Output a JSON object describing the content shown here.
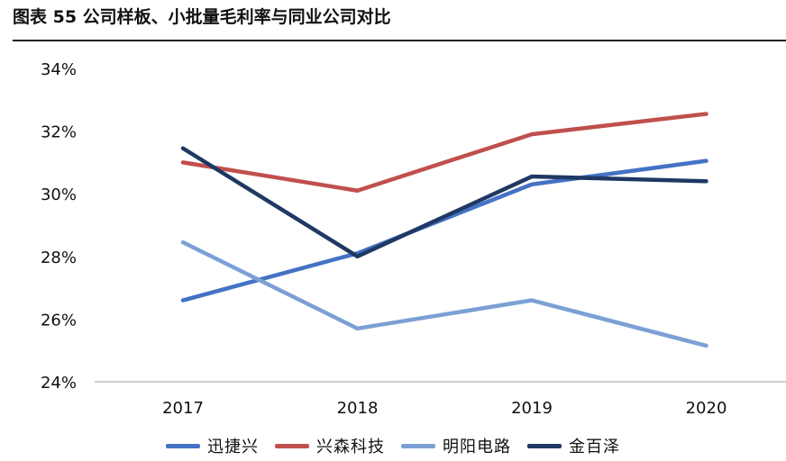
{
  "figure": {
    "title": "图表 55 公司样板、小批量毛利率与同业公司对比"
  },
  "chart_data": {
    "type": "line",
    "title": "图表 55 公司样板、小批量毛利率与同业公司对比",
    "xlabel": "",
    "ylabel": "",
    "categories": [
      "2017",
      "2018",
      "2019",
      "2020"
    ],
    "ylim": [
      24,
      34
    ],
    "yticks": [
      24,
      26,
      28,
      30,
      32,
      34
    ],
    "ytick_labels": [
      "24%",
      "26%",
      "28%",
      "30%",
      "32%",
      "34%"
    ],
    "grid": false,
    "legend_position": "bottom",
    "series": [
      {
        "name": "迅捷兴",
        "color": "#4472C4",
        "values": [
          26.6,
          28.1,
          30.3,
          31.05
        ]
      },
      {
        "name": "兴森科技",
        "color": "#C0504D",
        "values": [
          31.0,
          30.1,
          31.9,
          32.55
        ]
      },
      {
        "name": "明阳电路",
        "color": "#7BA0D4",
        "values": [
          28.45,
          25.7,
          26.6,
          25.15
        ]
      },
      {
        "name": "金百泽",
        "color": "#1F3864",
        "values": [
          31.45,
          28.0,
          30.55,
          30.4
        ]
      }
    ]
  }
}
